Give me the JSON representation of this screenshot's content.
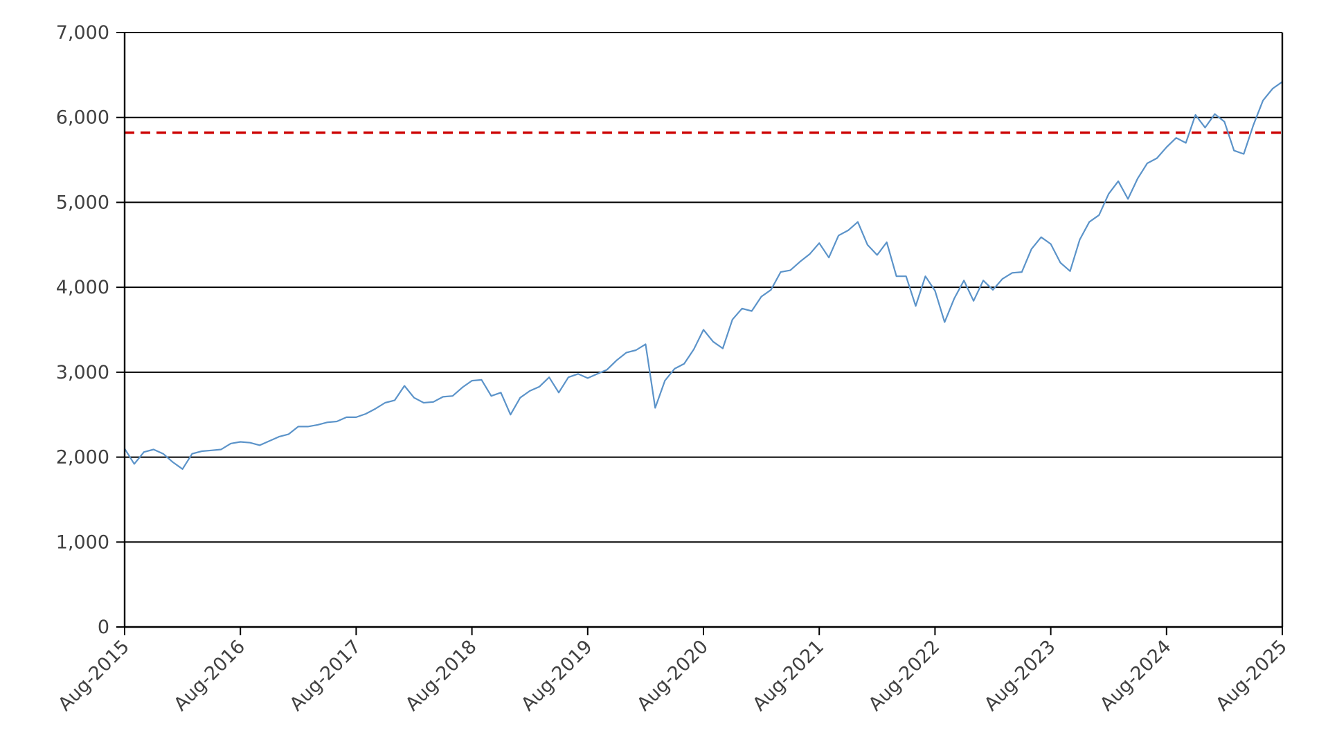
{
  "chart_data": {
    "type": "line",
    "title": "",
    "xlabel": "",
    "ylabel": "",
    "ylim": [
      0,
      7000
    ],
    "xlim": [
      "2015-08",
      "2025-08"
    ],
    "y_ticks": [
      "0",
      "1,000",
      "2,000",
      "3,000",
      "4,000",
      "5,000",
      "6,000",
      "7,000"
    ],
    "x_ticks": [
      "Aug-2015",
      "Aug-2016",
      "Aug-2017",
      "Aug-2018",
      "Aug-2019",
      "Aug-2020",
      "Aug-2021",
      "Aug-2022",
      "Aug-2023",
      "Aug-2024",
      "Aug-2025"
    ],
    "grid": "horizontal",
    "legend": "none",
    "series": [
      {
        "color": "#5b93c9",
        "x": [
          "2015-08",
          "2015-09",
          "2015-10",
          "2015-11",
          "2015-12",
          "2016-01",
          "2016-02",
          "2016-03",
          "2016-04",
          "2016-05",
          "2016-06",
          "2016-07",
          "2016-08",
          "2016-09",
          "2016-10",
          "2016-11",
          "2016-12",
          "2017-01",
          "2017-02",
          "2017-03",
          "2017-04",
          "2017-05",
          "2017-06",
          "2017-07",
          "2017-08",
          "2017-09",
          "2017-10",
          "2017-11",
          "2017-12",
          "2018-01",
          "2018-02",
          "2018-03",
          "2018-04",
          "2018-05",
          "2018-06",
          "2018-07",
          "2018-08",
          "2018-09",
          "2018-10",
          "2018-11",
          "2018-12",
          "2019-01",
          "2019-02",
          "2019-03",
          "2019-04",
          "2019-05",
          "2019-06",
          "2019-07",
          "2019-08",
          "2019-09",
          "2019-10",
          "2019-11",
          "2019-12",
          "2020-01",
          "2020-02",
          "2020-03",
          "2020-04",
          "2020-05",
          "2020-06",
          "2020-07",
          "2020-08",
          "2020-09",
          "2020-10",
          "2020-11",
          "2020-12",
          "2021-01",
          "2021-02",
          "2021-03",
          "2021-04",
          "2021-05",
          "2021-06",
          "2021-07",
          "2021-08",
          "2021-09",
          "2021-10",
          "2021-11",
          "2021-12",
          "2022-01",
          "2022-02",
          "2022-03",
          "2022-04",
          "2022-05",
          "2022-06",
          "2022-07",
          "2022-08",
          "2022-09",
          "2022-10",
          "2022-11",
          "2022-12",
          "2023-01",
          "2023-02",
          "2023-03",
          "2023-04",
          "2023-05",
          "2023-06",
          "2023-07",
          "2023-08",
          "2023-09",
          "2023-10",
          "2023-11",
          "2023-12",
          "2024-01",
          "2024-02",
          "2024-03",
          "2024-04",
          "2024-05",
          "2024-06",
          "2024-07",
          "2024-08",
          "2024-09",
          "2024-10",
          "2024-11",
          "2024-12",
          "2025-01",
          "2025-02",
          "2025-03",
          "2025-04",
          "2025-05",
          "2025-06",
          "2025-07",
          "2025-08"
        ],
        "values": [
          2100,
          1920,
          2060,
          2090,
          2040,
          1940,
          1860,
          2040,
          2070,
          2080,
          2090,
          2160,
          2180,
          2170,
          2140,
          2190,
          2240,
          2270,
          2360,
          2360,
          2380,
          2410,
          2420,
          2470,
          2470,
          2510,
          2570,
          2640,
          2670,
          2840,
          2700,
          2640,
          2650,
          2710,
          2720,
          2820,
          2900,
          2910,
          2720,
          2760,
          2500,
          2700,
          2780,
          2830,
          2940,
          2760,
          2940,
          2980,
          2930,
          2980,
          3030,
          3140,
          3230,
          3260,
          3330,
          2580,
          2900,
          3040,
          3100,
          3270,
          3500,
          3360,
          3280,
          3620,
          3750,
          3720,
          3890,
          3970,
          4180,
          4200,
          4300,
          4390,
          4520,
          4350,
          4610,
          4670,
          4770,
          4500,
          4380,
          4530,
          4130,
          4130,
          3780,
          4130,
          3960,
          3590,
          3870,
          4080,
          3840,
          4080,
          3970,
          4100,
          4170,
          4180,
          4450,
          4590,
          4510,
          4290,
          4190,
          4560,
          4770,
          4850,
          5100,
          5250,
          5040,
          5280,
          5460,
          5520,
          5650,
          5760,
          5700,
          6030,
          5880,
          6040,
          5950,
          5610,
          5570,
          5910,
          6200,
          6340,
          6420
        ]
      }
    ],
    "reference_lines": [
      {
        "y": 5820,
        "color": "#cc0000",
        "style": "dashed"
      }
    ]
  }
}
